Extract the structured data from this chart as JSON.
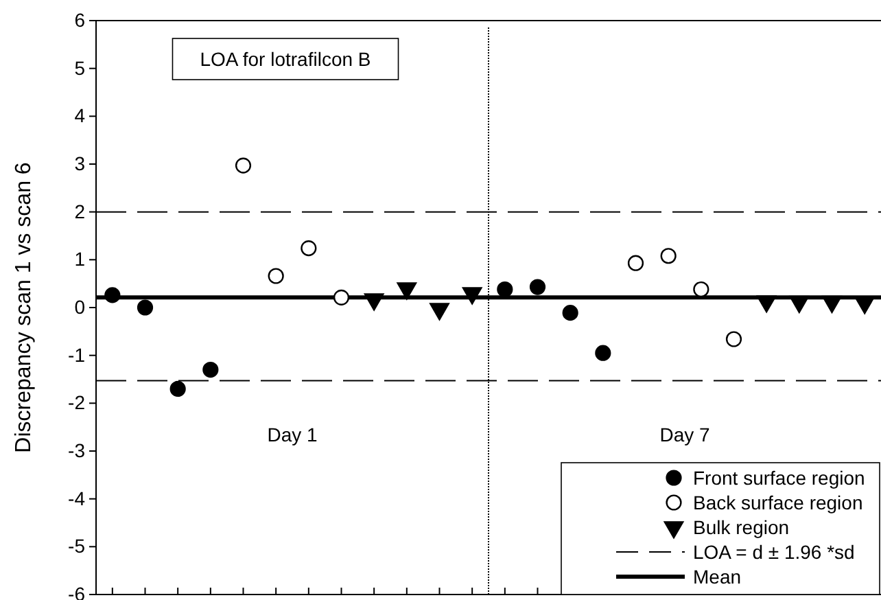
{
  "chart_data": {
    "type": "scatter",
    "title": "LOA for lotrafilcon B",
    "ylabel": "Discrepancy scan 1 vs scan 6",
    "categories": [
      null,
      null,
      null,
      null,
      null,
      null,
      null,
      null,
      null,
      null,
      null,
      null,
      null,
      null,
      null,
      null,
      null,
      null,
      null,
      null,
      null,
      null,
      null,
      null
    ],
    "ylim": [
      -6,
      6
    ],
    "yticks": [
      -6,
      -5,
      -4,
      -3,
      -2,
      -1,
      0,
      1,
      2,
      3,
      4,
      5,
      6
    ],
    "series": [
      {
        "name": "Front surface region",
        "color": "#000000",
        "marker": "circle",
        "values": [
          0.26,
          0.0,
          -1.7,
          -1.3,
          null,
          null,
          null,
          null,
          null,
          null,
          null,
          null,
          0.38,
          0.43,
          -0.11,
          -0.95,
          null,
          null,
          null,
          null,
          null,
          null,
          null,
          null
        ]
      },
      {
        "name": "Back surface region",
        "color": "#000000",
        "marker": "circle_open",
        "values": [
          null,
          null,
          null,
          null,
          2.97,
          0.66,
          1.24,
          0.21,
          null,
          null,
          null,
          null,
          null,
          null,
          null,
          null,
          0.93,
          1.08,
          0.38,
          -0.66,
          null,
          null,
          null,
          null
        ]
      },
      {
        "name": "Bulk region",
        "color": "#000000",
        "marker": "triangle",
        "values": [
          null,
          null,
          null,
          null,
          null,
          null,
          null,
          null,
          0.17,
          0.4,
          -0.03,
          0.3,
          null,
          null,
          null,
          null,
          null,
          null,
          null,
          null,
          0.13,
          0.12,
          0.12,
          0.1
        ]
      }
    ],
    "ref_lines": [
      {
        "axis": "y",
        "value": 2.0,
        "label": "LOA = d ± 1.96 *sd",
        "line_style": "dashed",
        "color": "#000000"
      },
      {
        "axis": "y",
        "value": -1.53,
        "line_style": "dashed",
        "color": "#000000"
      },
      {
        "axis": "y",
        "value": 0.21,
        "label": "Mean",
        "line_style": "solid",
        "color": "#000000"
      }
    ],
    "annotations": [
      "Day 1",
      "Day 7"
    ],
    "grid": false,
    "legend": "bottom right"
  }
}
